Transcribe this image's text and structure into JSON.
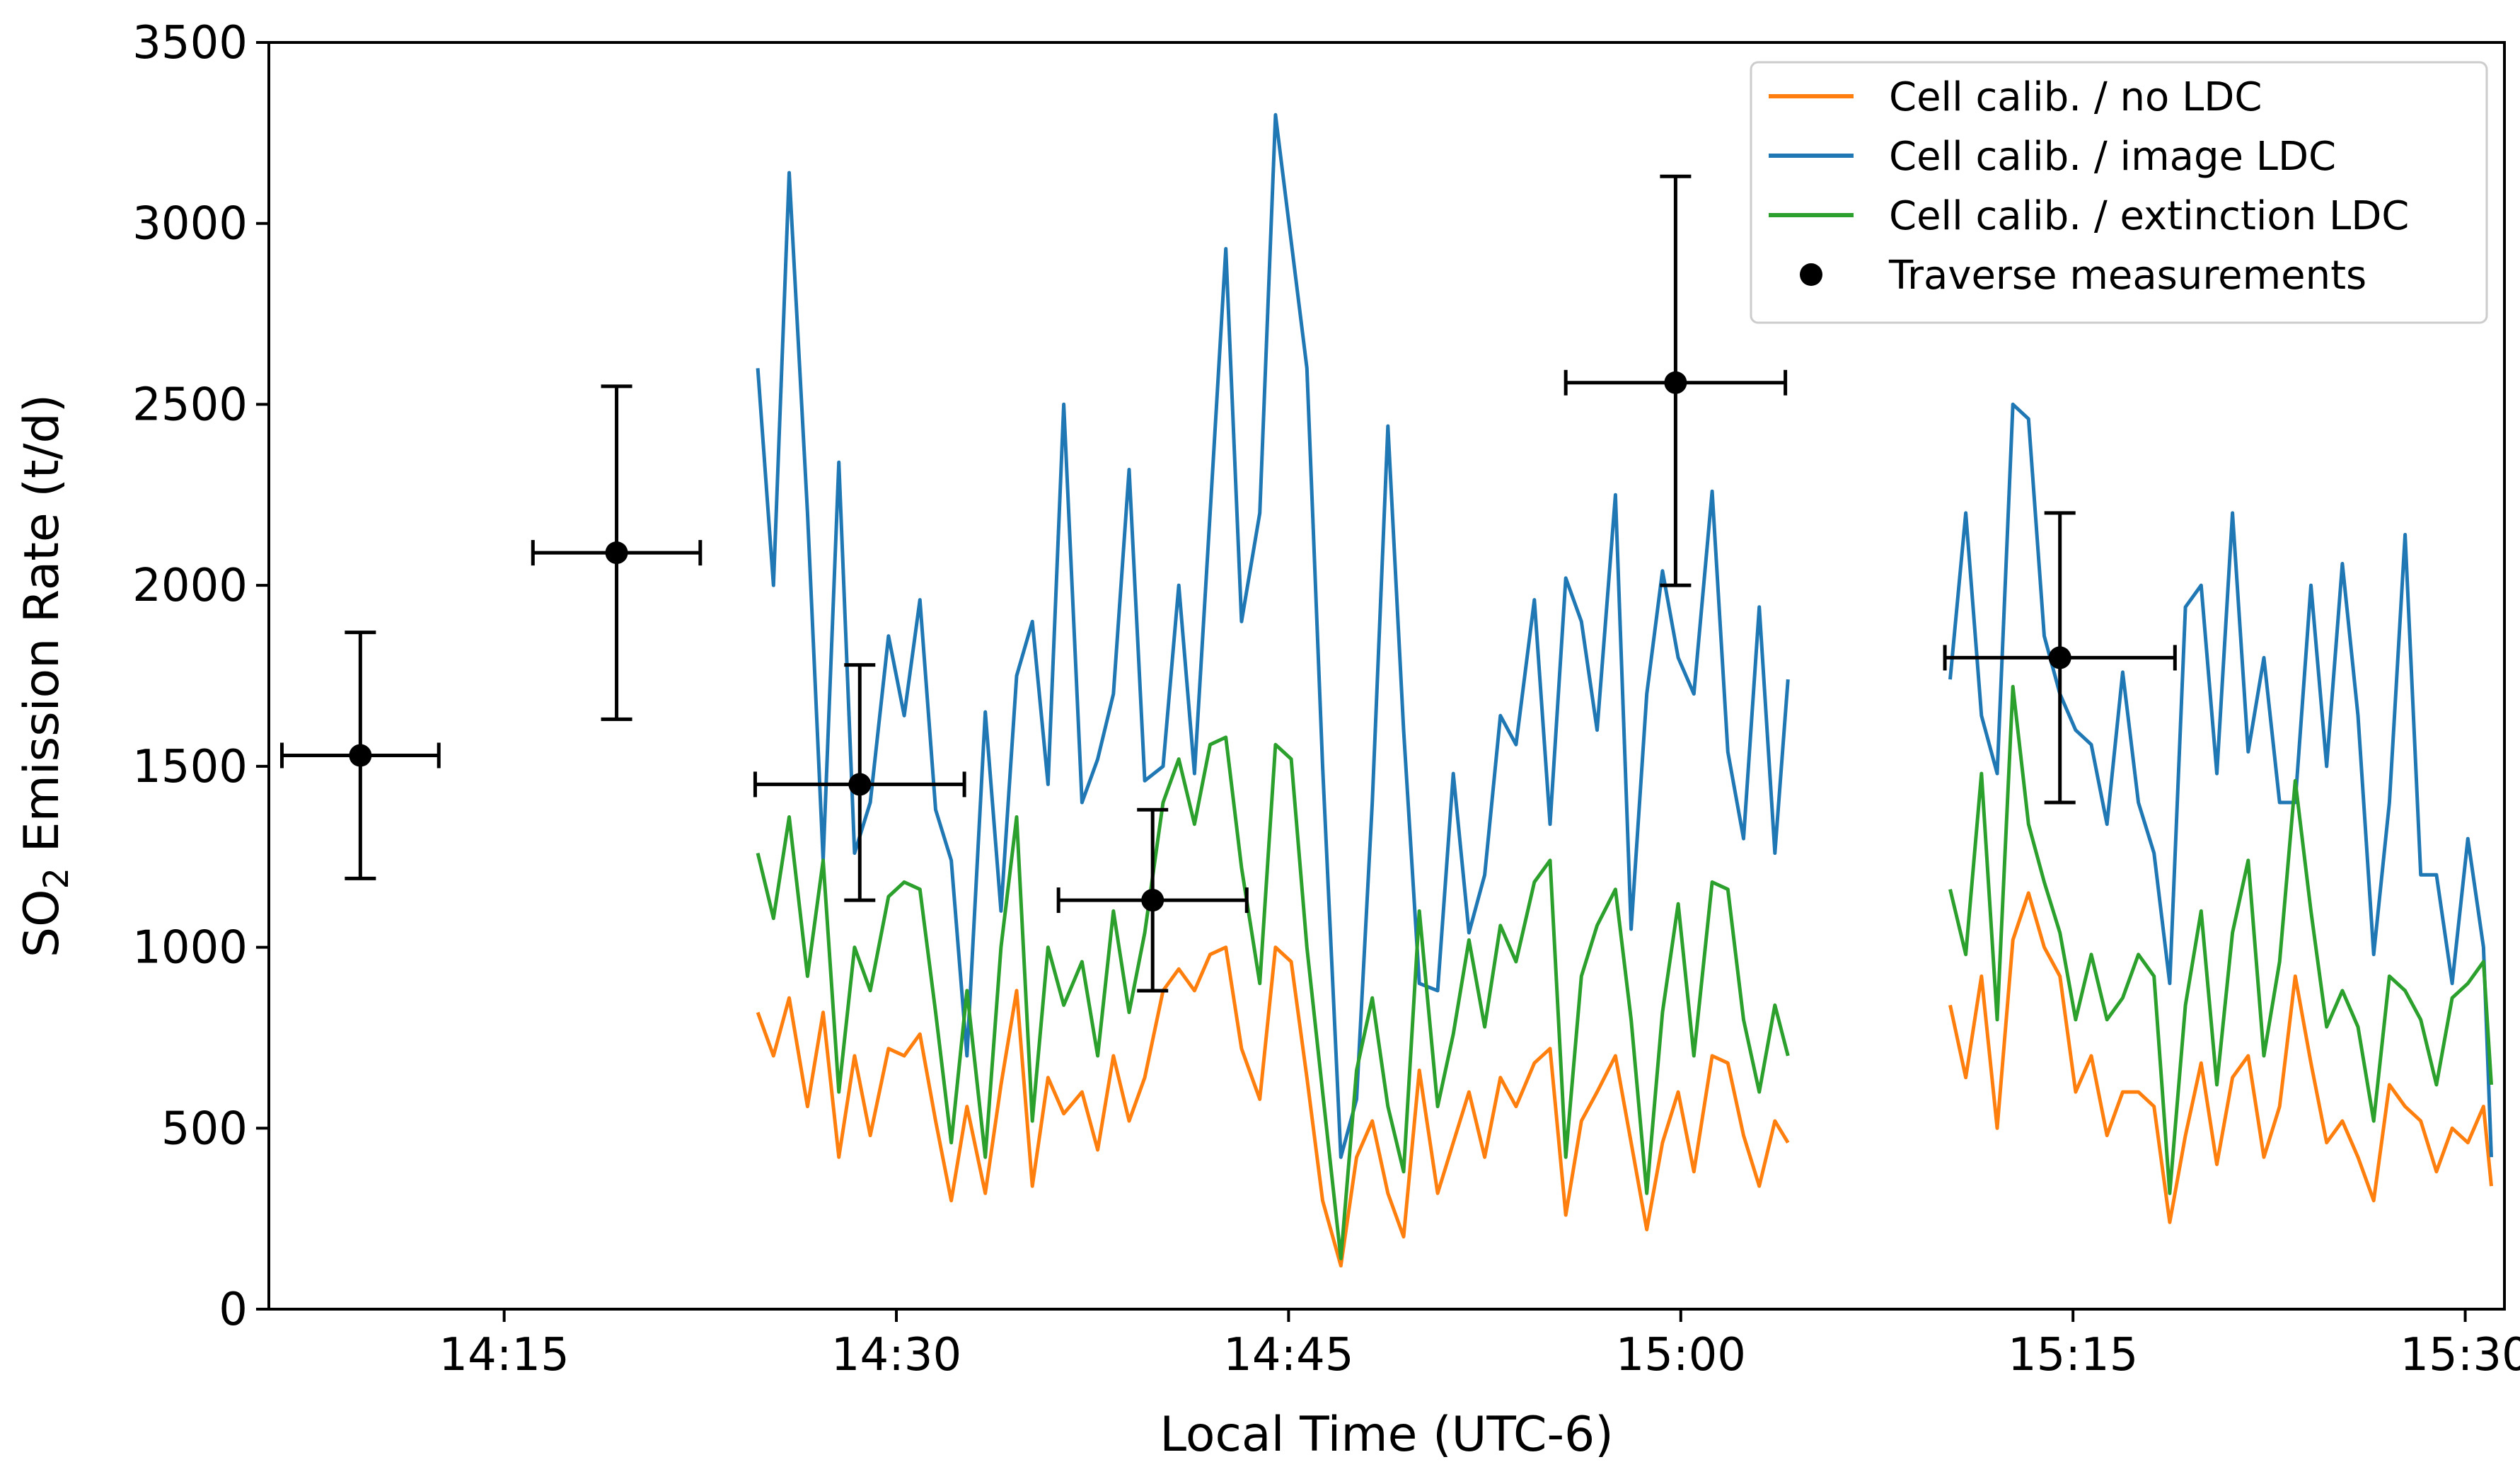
{
  "chart_data": {
    "type": "line",
    "title": "",
    "xlabel": "Local Time (UTC-6)",
    "ylabel_prefix": "SO",
    "ylabel_subscript": "2",
    "ylabel_suffix": " Emission Rate (t/d)",
    "ylim": [
      0,
      3500
    ],
    "xlim_minutes": [
      846.0,
      931.5
    ],
    "yticks": [
      0,
      500,
      1000,
      1500,
      2000,
      2500,
      3000,
      3500
    ],
    "xticks": [
      {
        "label": "14:15",
        "minutes": 855
      },
      {
        "label": "14:30",
        "minutes": 870
      },
      {
        "label": "14:45",
        "minutes": 885
      },
      {
        "label": "15:00",
        "minutes": 900
      },
      {
        "label": "15:15",
        "minutes": 915
      },
      {
        "label": "15:30",
        "minutes": 930
      }
    ],
    "legend_position": "top-right",
    "segments_minutes": [
      [
        864.7,
        904.1
      ],
      [
        910.3,
        931.0
      ]
    ],
    "series": [
      {
        "name": "Cell calib. / no LDC",
        "color": "#ff7f0e",
        "t": [
          864.7,
          865.3,
          865.9,
          866.6,
          867.2,
          867.8,
          868.4,
          869.0,
          869.7,
          870.3,
          870.9,
          871.5,
          872.1,
          872.7,
          873.4,
          874.0,
          874.6,
          875.2,
          875.8,
          876.4,
          877.1,
          877.7,
          878.3,
          878.9,
          879.5,
          880.2,
          880.8,
          881.4,
          882.0,
          882.6,
          883.2,
          883.9,
          884.5,
          885.1,
          885.7,
          886.3,
          887.0,
          887.6,
          888.2,
          888.8,
          889.4,
          890.0,
          890.7,
          891.3,
          891.9,
          892.5,
          893.1,
          893.7,
          894.4,
          895.0,
          895.6,
          896.2,
          896.8,
          897.5,
          898.1,
          898.7,
          899.3,
          899.9,
          900.5,
          901.2,
          901.8,
          902.4,
          903.0,
          903.6,
          904.1,
          910.3,
          910.9,
          911.5,
          912.1,
          912.7,
          913.3,
          913.9,
          914.5,
          915.1,
          915.7,
          916.3,
          916.9,
          917.5,
          918.1,
          918.7,
          919.3,
          919.9,
          920.5,
          921.1,
          921.7,
          922.3,
          922.9,
          923.5,
          924.1,
          924.7,
          925.3,
          925.9,
          926.5,
          927.1,
          927.7,
          928.3,
          928.9,
          929.5,
          930.1,
          930.7,
          931.0
        ],
        "v": [
          820,
          700,
          860,
          560,
          820,
          420,
          700,
          480,
          720,
          700,
          760,
          520,
          300,
          560,
          320,
          620,
          880,
          340,
          640,
          540,
          600,
          440,
          700,
          520,
          640,
          880,
          940,
          880,
          980,
          1000,
          720,
          580,
          1000,
          960,
          640,
          300,
          120,
          420,
          520,
          320,
          200,
          660,
          320,
          460,
          600,
          420,
          640,
          560,
          680,
          720,
          260,
          520,
          600,
          700,
          460,
          220,
          460,
          600,
          380,
          700,
          680,
          480,
          340,
          520,
          460,
          840,
          640,
          920,
          500,
          1020,
          1150,
          1000,
          920,
          600,
          700,
          480,
          600,
          600,
          560,
          240,
          480,
          680,
          400,
          640,
          700,
          420,
          560,
          920,
          680,
          460,
          520,
          420,
          300,
          620,
          560,
          520,
          380,
          500,
          460,
          560,
          340
        ],
        "segment_starts": [
          0,
          65
        ]
      },
      {
        "name": "Cell calib. / image LDC",
        "color": "#1f77b4",
        "t": [
          864.7,
          865.3,
          865.9,
          866.6,
          867.2,
          867.8,
          868.4,
          869.0,
          869.7,
          870.3,
          870.9,
          871.5,
          872.1,
          872.7,
          873.4,
          874.0,
          874.6,
          875.2,
          875.8,
          876.4,
          877.1,
          877.7,
          878.3,
          878.9,
          879.5,
          880.2,
          880.8,
          881.4,
          882.0,
          882.6,
          883.2,
          883.9,
          884.5,
          885.1,
          885.7,
          886.3,
          887.0,
          887.6,
          888.2,
          888.8,
          889.4,
          890.0,
          890.7,
          891.3,
          891.9,
          892.5,
          893.1,
          893.7,
          894.4,
          895.0,
          895.6,
          896.2,
          896.8,
          897.5,
          898.1,
          898.7,
          899.3,
          899.9,
          900.5,
          901.2,
          901.8,
          902.4,
          903.0,
          903.6,
          904.1,
          910.3,
          910.9,
          911.5,
          912.1,
          912.7,
          913.3,
          913.9,
          914.5,
          915.1,
          915.7,
          916.3,
          916.9,
          917.5,
          918.1,
          918.7,
          919.3,
          919.9,
          920.5,
          921.1,
          921.7,
          922.3,
          922.9,
          923.5,
          924.1,
          924.7,
          925.3,
          925.9,
          926.5,
          927.1,
          927.7,
          928.3,
          928.9,
          929.5,
          930.1,
          930.7,
          931.0
        ],
        "v": [
          2600,
          2000,
          3140,
          2200,
          1240,
          2340,
          1260,
          1400,
          1860,
          1640,
          1960,
          1380,
          1240,
          700,
          1650,
          1100,
          1750,
          1900,
          1450,
          2500,
          1400,
          1520,
          1700,
          2320,
          1460,
          1500,
          2000,
          1480,
          2200,
          2930,
          1900,
          2200,
          3300,
          2950,
          2600,
          1500,
          420,
          580,
          1400,
          2440,
          1600,
          900,
          880,
          1480,
          1040,
          1200,
          1640,
          1560,
          1960,
          1340,
          2020,
          1900,
          1600,
          2250,
          1050,
          1700,
          2040,
          1800,
          1700,
          2260,
          1540,
          1300,
          1940,
          1260,
          1740,
          1740,
          2200,
          1640,
          1480,
          2500,
          2460,
          1860,
          1700,
          1600,
          1560,
          1340,
          1760,
          1400,
          1260,
          900,
          1940,
          2000,
          1480,
          2200,
          1540,
          1800,
          1400,
          1400,
          2000,
          1500,
          2060,
          1640,
          980,
          1400,
          2140,
          1200,
          1200,
          900,
          1300,
          1000,
          420
        ],
        "segment_starts": [
          0,
          65
        ]
      },
      {
        "name": "Cell calib. / extinction LDC",
        "color": "#2ca02c",
        "t": [
          864.7,
          865.3,
          865.9,
          866.6,
          867.2,
          867.8,
          868.4,
          869.0,
          869.7,
          870.3,
          870.9,
          871.5,
          872.1,
          872.7,
          873.4,
          874.0,
          874.6,
          875.2,
          875.8,
          876.4,
          877.1,
          877.7,
          878.3,
          878.9,
          879.5,
          880.2,
          880.8,
          881.4,
          882.0,
          882.6,
          883.2,
          883.9,
          884.5,
          885.1,
          885.7,
          886.3,
          887.0,
          887.6,
          888.2,
          888.8,
          889.4,
          890.0,
          890.7,
          891.3,
          891.9,
          892.5,
          893.1,
          893.7,
          894.4,
          895.0,
          895.6,
          896.2,
          896.8,
          897.5,
          898.1,
          898.7,
          899.3,
          899.9,
          900.5,
          901.2,
          901.8,
          902.4,
          903.0,
          903.6,
          904.1,
          910.3,
          910.9,
          911.5,
          912.1,
          912.7,
          913.3,
          913.9,
          914.5,
          915.1,
          915.7,
          916.3,
          916.9,
          917.5,
          918.1,
          918.7,
          919.3,
          919.9,
          920.5,
          921.1,
          921.7,
          922.3,
          922.9,
          923.5,
          924.1,
          924.7,
          925.3,
          925.9,
          926.5,
          927.1,
          927.7,
          928.3,
          928.9,
          929.5,
          930.1,
          930.7,
          931.0
        ],
        "v": [
          1260,
          1080,
          1360,
          920,
          1240,
          600,
          1000,
          880,
          1140,
          1180,
          1160,
          820,
          460,
          880,
          420,
          1000,
          1360,
          520,
          1000,
          840,
          960,
          700,
          1100,
          820,
          1040,
          1400,
          1520,
          1340,
          1560,
          1580,
          1220,
          900,
          1560,
          1520,
          1000,
          600,
          140,
          660,
          860,
          560,
          380,
          1100,
          560,
          760,
          1020,
          780,
          1060,
          960,
          1180,
          1240,
          420,
          920,
          1060,
          1160,
          800,
          320,
          820,
          1120,
          700,
          1180,
          1160,
          800,
          600,
          840,
          700,
          1160,
          980,
          1480,
          800,
          1720,
          1340,
          1180,
          1040,
          800,
          980,
          800,
          860,
          980,
          920,
          320,
          840,
          1100,
          620,
          1040,
          1240,
          700,
          960,
          1460,
          1100,
          780,
          880,
          780,
          520,
          920,
          880,
          800,
          620,
          860,
          900,
          960,
          620
        ],
        "segment_starts": [
          0,
          65
        ]
      }
    ],
    "traverse": {
      "name": "Traverse measurements",
      "color": "#000000",
      "points": [
        {
          "t": 849.5,
          "v": 1530,
          "t_err": 3.0,
          "v_lo": 1190,
          "v_hi": 1870
        },
        {
          "t": 859.3,
          "v": 2090,
          "t_err": 3.2,
          "v_lo": 1630,
          "v_hi": 2550
        },
        {
          "t": 868.6,
          "v": 1450,
          "t_err": 4.0,
          "v_lo": 1130,
          "v_hi": 1780
        },
        {
          "t": 879.8,
          "v": 1130,
          "t_err": 3.6,
          "v_lo": 880,
          "v_hi": 1380
        },
        {
          "t": 899.8,
          "v": 2560,
          "t_err": 4.2,
          "v_lo": 2000,
          "v_hi": 3130
        },
        {
          "t": 914.5,
          "v": 1800,
          "t_err": 4.4,
          "v_lo": 1400,
          "v_hi": 2200
        }
      ]
    }
  }
}
